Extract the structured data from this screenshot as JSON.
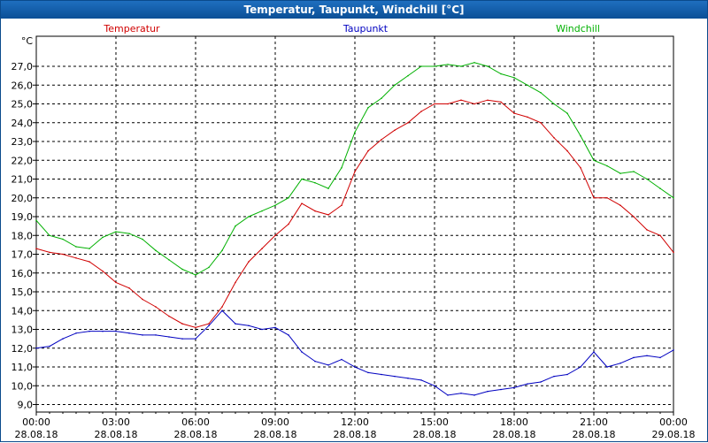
{
  "window": {
    "title": "Temperatur, Taupunkt, Windchill [°C]"
  },
  "colors": {
    "Temperatur": "#d00000",
    "Taupunkt": "#0000c0",
    "Windchill": "#00b000",
    "grid": "#000000",
    "title_bg": "#0b4f96"
  },
  "chart_data": {
    "type": "line",
    "title": "Temperatur, Taupunkt, Windchill [°C]",
    "ylabel": "°C",
    "xlabel": "",
    "ylim": [
      8.6,
      28.6
    ],
    "xlim_hours": [
      0,
      24
    ],
    "grid": true,
    "legend_placement": "top",
    "y_ticks": [
      "9,0",
      "10,0",
      "11,0",
      "12,0",
      "13,0",
      "14,0",
      "15,0",
      "16,0",
      "17,0",
      "18,0",
      "19,0",
      "20,0",
      "21,0",
      "22,0",
      "23,0",
      "24,0",
      "25,0",
      "26,0",
      "27,0"
    ],
    "x_ticks": [
      {
        "time": "00:00",
        "date": "28.08.18"
      },
      {
        "time": "03:00",
        "date": "28.08.18"
      },
      {
        "time": "06:00",
        "date": "28.08.18"
      },
      {
        "time": "09:00",
        "date": "28.08.18"
      },
      {
        "time": "12:00",
        "date": "28.08.18"
      },
      {
        "time": "15:00",
        "date": "28.08.18"
      },
      {
        "time": "18:00",
        "date": "28.08.18"
      },
      {
        "time": "21:00",
        "date": "28.08.18"
      },
      {
        "time": "00:00",
        "date": "29.08.18"
      }
    ],
    "x": [
      "00:00",
      "00:30",
      "01:00",
      "01:30",
      "02:00",
      "02:30",
      "03:00",
      "03:30",
      "04:00",
      "04:30",
      "05:00",
      "05:30",
      "06:00",
      "06:30",
      "07:00",
      "07:30",
      "08:00",
      "08:30",
      "09:00",
      "09:30",
      "10:00",
      "10:30",
      "11:00",
      "11:30",
      "12:00",
      "12:30",
      "13:00",
      "13:30",
      "14:00",
      "14:30",
      "15:00",
      "15:30",
      "16:00",
      "16:30",
      "17:00",
      "17:30",
      "18:00",
      "18:30",
      "19:00",
      "19:30",
      "20:00",
      "20:30",
      "21:00",
      "21:30",
      "22:00",
      "22:30",
      "23:00",
      "23:30",
      "24:00"
    ],
    "series": [
      {
        "name": "Temperatur",
        "values": [
          17.3,
          17.1,
          17.0,
          16.8,
          16.6,
          16.1,
          15.5,
          15.2,
          14.6,
          14.2,
          13.7,
          13.3,
          13.1,
          13.3,
          14.2,
          15.5,
          16.6,
          17.3,
          18.0,
          18.6,
          19.7,
          19.3,
          19.1,
          19.6,
          21.4,
          22.5,
          23.1,
          23.6,
          24.0,
          24.6,
          25.0,
          25.0,
          25.2,
          25.0,
          25.2,
          25.1,
          24.5,
          24.3,
          24.0,
          23.2,
          22.5,
          21.6,
          20.0,
          20.0,
          19.6,
          19.0,
          18.3,
          18.0,
          17.1
        ]
      },
      {
        "name": "Taupunkt",
        "values": [
          12.0,
          12.1,
          12.5,
          12.8,
          12.9,
          12.9,
          12.9,
          12.8,
          12.7,
          12.7,
          12.6,
          12.5,
          12.5,
          13.2,
          14.0,
          13.3,
          13.2,
          13.0,
          13.1,
          12.7,
          11.8,
          11.3,
          11.1,
          11.4,
          11.0,
          10.7,
          10.6,
          10.5,
          10.4,
          10.3,
          10.0,
          9.5,
          9.6,
          9.5,
          9.7,
          9.8,
          9.9,
          10.1,
          10.2,
          10.5,
          10.6,
          11.0,
          11.8,
          11.0,
          11.2,
          11.5,
          11.6,
          11.5,
          11.9
        ]
      },
      {
        "name": "Windchill",
        "values": [
          18.8,
          18.0,
          17.8,
          17.4,
          17.3,
          17.9,
          18.2,
          18.1,
          17.8,
          17.2,
          16.7,
          16.2,
          15.9,
          16.3,
          17.2,
          18.5,
          19.0,
          19.3,
          19.6,
          20.0,
          21.0,
          20.8,
          20.5,
          21.6,
          23.5,
          24.8,
          25.3,
          26.0,
          26.5,
          27.0,
          27.0,
          27.1,
          27.0,
          27.2,
          27.0,
          26.6,
          26.4,
          26.0,
          25.6,
          25.0,
          24.5,
          23.3,
          22.0,
          21.7,
          21.3,
          21.4,
          21.0,
          20.5,
          20.0
        ]
      }
    ]
  }
}
